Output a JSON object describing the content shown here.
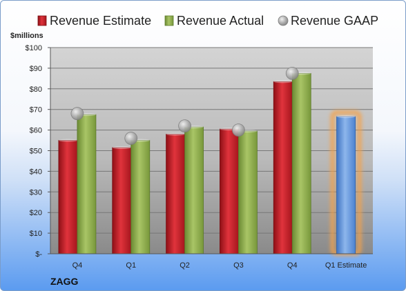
{
  "chart_data": {
    "type": "bar",
    "ylabel": "$millions",
    "company": "ZAGG",
    "categories": [
      "Q4",
      "Q1",
      "Q2",
      "Q3",
      "Q4",
      "Q1 Estimate"
    ],
    "ylim": [
      0,
      100
    ],
    "yticks": [
      "$-",
      "$10",
      "$20",
      "$30",
      "$40",
      "$50",
      "$60",
      "$70",
      "$80",
      "$90",
      "$100"
    ],
    "ytick_values": [
      0,
      10,
      20,
      30,
      40,
      50,
      60,
      70,
      80,
      90,
      100
    ],
    "grid": true,
    "legend_position": "top",
    "series": [
      {
        "name": "Revenue Estimate",
        "kind": "bar",
        "color": "#c8202a",
        "values": [
          55,
          51.5,
          58,
          60.5,
          83.5,
          null
        ]
      },
      {
        "name": "Revenue Actual",
        "kind": "bar",
        "color": "#8fae4c",
        "values": [
          67.5,
          55,
          61.5,
          59.5,
          87.5,
          null
        ]
      },
      {
        "name": "Revenue GAAP",
        "kind": "marker",
        "color": "#b3b3b3",
        "values": [
          68,
          56,
          62,
          60,
          87.5,
          null
        ]
      },
      {
        "name": "",
        "kind": "bar",
        "color": "#5b8fd6",
        "highlight": "#f5a24a",
        "values": [
          null,
          null,
          null,
          null,
          null,
          66.5
        ]
      }
    ]
  }
}
